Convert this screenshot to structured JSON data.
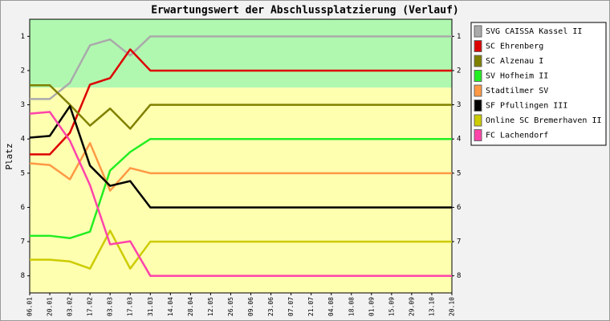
{
  "chart_data": {
    "type": "line",
    "title": "Erwartungswert der Abschlussplatzierung (Verlauf)",
    "y_label": "Platz",
    "categories": [
      "06.01",
      "20.01",
      "03.02",
      "17.02",
      "03.03",
      "17.03",
      "31.03",
      "14.04",
      "28.04",
      "12.05",
      "26.05",
      "09.06",
      "23.06",
      "07.07",
      "21.07",
      "04.08",
      "18.08",
      "01.09",
      "15.09",
      "29.09",
      "13.10",
      "20.10"
    ],
    "ylim": [
      8.5,
      0.5
    ],
    "yticks": [
      1,
      2,
      3,
      4,
      5,
      6,
      7,
      8
    ],
    "inverted": true,
    "legend": "right",
    "bands": [
      {
        "from": 0.5,
        "to": 2.5,
        "color": "#b0f8b0"
      },
      {
        "from": 2.5,
        "to": 8.5,
        "color": "#ffffb0"
      }
    ],
    "series": [
      {
        "name": "SVG CAISSA Kassel II",
        "color": "#aaaaaa",
        "values": [
          2.83,
          2.83,
          2.36,
          1.26,
          1.09,
          1.56,
          1,
          1,
          1,
          1,
          1,
          1,
          1,
          1,
          1,
          1,
          1,
          1,
          1,
          1,
          1,
          1
        ]
      },
      {
        "name": "SC Ehrenberg",
        "color": "#dd0000",
        "values": [
          4.45,
          4.45,
          3.82,
          2.41,
          2.22,
          1.38,
          2,
          2,
          2,
          2,
          2,
          2,
          2,
          2,
          2,
          2,
          2,
          2,
          2,
          2,
          2,
          2
        ]
      },
      {
        "name": "SC Alzenau I",
        "color": "#808000",
        "values": [
          2.43,
          2.43,
          3,
          3.61,
          3.11,
          3.7,
          3,
          3,
          3,
          3,
          3,
          3,
          3,
          3,
          3,
          3,
          3,
          3,
          3,
          3,
          3,
          3
        ]
      },
      {
        "name": "SV Hofheim II",
        "color": "#22ee22",
        "values": [
          6.83,
          6.83,
          6.9,
          6.71,
          4.92,
          4.38,
          4,
          4,
          4,
          4,
          4,
          4,
          4,
          4,
          4,
          4,
          4,
          4,
          4,
          4,
          4,
          4
        ]
      },
      {
        "name": "Stadtilmer SV",
        "color": "#ff9944",
        "values": [
          4.71,
          4.76,
          5.18,
          4.12,
          5.51,
          4.85,
          5,
          5,
          5,
          5,
          5,
          5,
          5,
          5,
          5,
          5,
          5,
          5,
          5,
          5,
          5,
          5
        ]
      },
      {
        "name": "SF Pfullingen III",
        "color": "#000000",
        "values": [
          3.96,
          3.91,
          3.04,
          4.78,
          5.37,
          5.23,
          6,
          6,
          6,
          6,
          6,
          6,
          6,
          6,
          6,
          6,
          6,
          6,
          6,
          6,
          6,
          6
        ]
      },
      {
        "name": "Online SC Bremerhaven II",
        "color": "#cccc00",
        "values": [
          7.53,
          7.53,
          7.58,
          7.79,
          6.68,
          7.79,
          7,
          7,
          7,
          7,
          7,
          7,
          7,
          7,
          7,
          7,
          7,
          7,
          7,
          7,
          7,
          7
        ]
      },
      {
        "name": "FC Lachendorf",
        "color": "#ff44aa",
        "values": [
          3.26,
          3.21,
          4.05,
          5.35,
          7.08,
          6.99,
          8,
          8,
          8,
          8,
          8,
          8,
          8,
          8,
          8,
          8,
          8,
          8,
          8,
          8,
          8,
          8
        ]
      }
    ]
  }
}
